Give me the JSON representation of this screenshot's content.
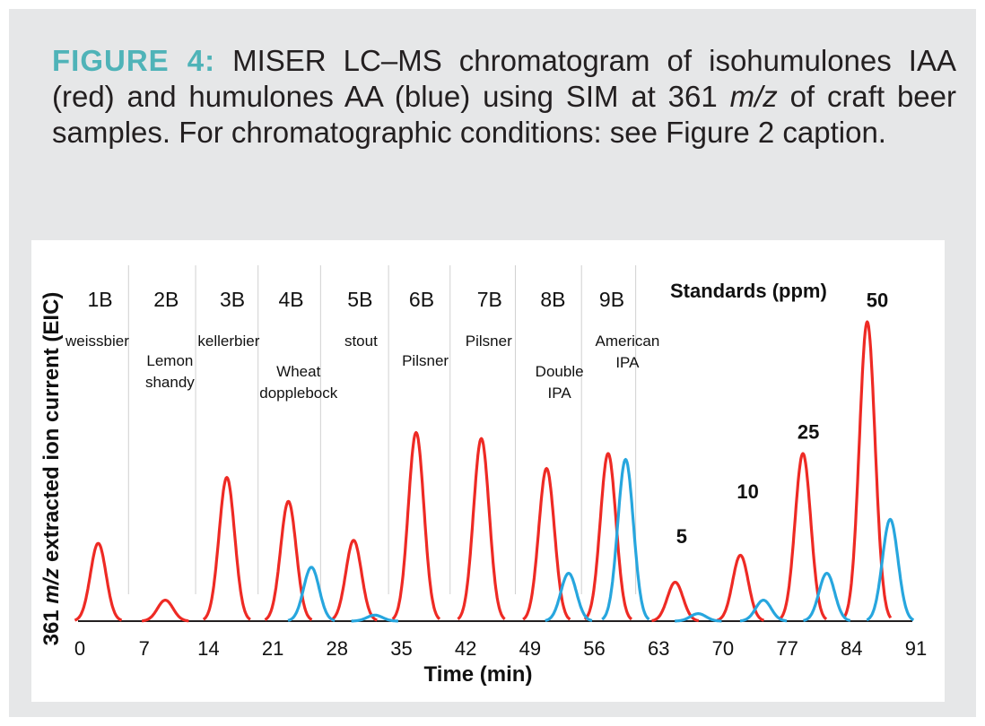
{
  "caption": {
    "lead": "FIGURE 4:",
    "text_1": " MISER LC–MS chromatogram of isohumulones IAA (red) and humulones AA (blue) using SIM at 361 ",
    "mz": "m/z",
    "text_2": " of craft beer samples. For chromatographic conditions: see Figure 2 caption."
  },
  "colors": {
    "panel": "#e6e7e8",
    "lead": "#4fb3b8",
    "iaa": "#ee2a24",
    "aa": "#27a6de",
    "baseline": "#231f20"
  },
  "chart_data": {
    "type": "line",
    "xlabel": "Time (min)",
    "ylabel_prefix": "361 ",
    "ylabel_italic": "m/z",
    "ylabel_suffix": " extracted ion current (EIC)",
    "xlim": [
      0,
      91
    ],
    "ylim": [
      0,
      100
    ],
    "x_ticks": [
      0,
      7,
      14,
      21,
      28,
      35,
      42,
      49,
      56,
      63,
      70,
      77,
      84,
      91
    ],
    "standards_title": "Standards (ppm)",
    "series": [
      {
        "name": "IAA (red)",
        "color": "#ee2a24",
        "peaks": [
          {
            "t": 2.0,
            "h": 26
          },
          {
            "t": 9.3,
            "h": 7
          },
          {
            "t": 16.0,
            "h": 48
          },
          {
            "t": 22.7,
            "h": 40
          },
          {
            "t": 29.8,
            "h": 27
          },
          {
            "t": 36.6,
            "h": 63
          },
          {
            "t": 43.7,
            "h": 61
          },
          {
            "t": 50.8,
            "h": 51
          },
          {
            "t": 57.5,
            "h": 56
          },
          {
            "t": 64.8,
            "h": 13
          },
          {
            "t": 71.9,
            "h": 22
          },
          {
            "t": 78.7,
            "h": 56
          },
          {
            "t": 85.7,
            "h": 100
          }
        ]
      },
      {
        "name": "AA (blue)",
        "color": "#27a6de",
        "peaks": [
          {
            "t": 25.2,
            "h": 18
          },
          {
            "t": 32.1,
            "h": 2
          },
          {
            "t": 53.2,
            "h": 16
          },
          {
            "t": 59.4,
            "h": 54
          },
          {
            "t": 67.3,
            "h": 2.5
          },
          {
            "t": 74.4,
            "h": 7
          },
          {
            "t": 81.3,
            "h": 16
          },
          {
            "t": 88.2,
            "h": 34
          }
        ]
      }
    ],
    "samples": [
      {
        "id": "1B",
        "name": [
          "weissbier"
        ],
        "id_t": 2.2,
        "name_t": 1.9,
        "name_row": 0
      },
      {
        "id": "2B",
        "name": [
          "Lemon",
          "shandy"
        ],
        "id_t": 9.4,
        "name_t": 9.8,
        "name_row": 1
      },
      {
        "id": "3B",
        "name": [
          "kellerbier"
        ],
        "id_t": 16.6,
        "name_t": 16.2,
        "name_row": 0
      },
      {
        "id": "4B",
        "name": [
          "Wheat",
          "dopplebock"
        ],
        "id_t": 23.0,
        "name_t": 23.8,
        "name_row": 2
      },
      {
        "id": "5B",
        "name": [
          "stout"
        ],
        "id_t": 30.5,
        "name_t": 30.6,
        "name_row": 0
      },
      {
        "id": "6B",
        "name": [
          "Pilsner"
        ],
        "id_t": 37.2,
        "name_t": 37.6,
        "name_row": 1
      },
      {
        "id": "7B",
        "name": [
          "Pilsner"
        ],
        "id_t": 44.6,
        "name_t": 44.5,
        "name_row": 0
      },
      {
        "id": "8B",
        "name": [
          "Double",
          "IPA"
        ],
        "id_t": 51.5,
        "name_t": 52.2,
        "name_row": 2
      },
      {
        "id": "9B",
        "name": [
          "American",
          "IPA"
        ],
        "id_t": 57.9,
        "name_t": 59.6,
        "name_row": 0
      }
    ],
    "standards": [
      {
        "label": "5",
        "t": 65.5,
        "h": 26
      },
      {
        "label": "10",
        "t": 72.7,
        "h": 41
      },
      {
        "label": "25",
        "t": 79.3,
        "h": 61
      },
      {
        "label": "50",
        "t": 86.8,
        "h": 105
      }
    ]
  }
}
